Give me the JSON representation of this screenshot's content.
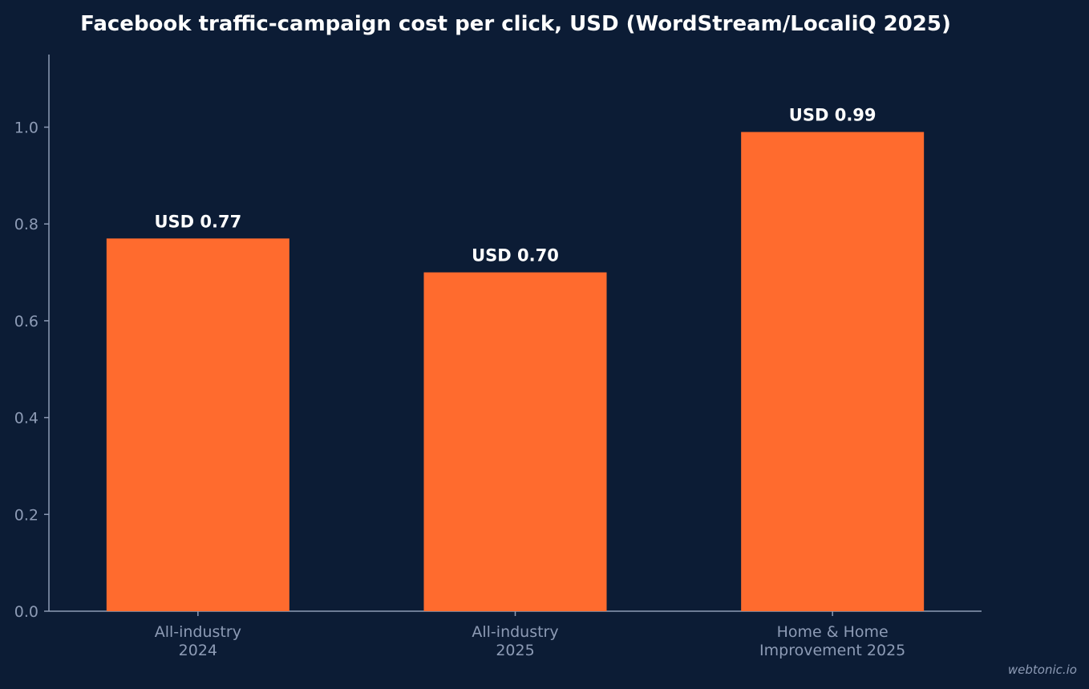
{
  "chart_data": {
    "type": "bar",
    "title": "Facebook traffic-campaign cost per click, USD (WordStream/LocaliQ 2025)",
    "categories": [
      [
        "All-industry",
        "2024"
      ],
      [
        "All-industry",
        "2025"
      ],
      [
        "Home & Home",
        "Improvement 2025"
      ]
    ],
    "values": [
      0.77,
      0.7,
      0.99
    ],
    "data_labels": [
      "USD 0.77",
      "USD 0.70",
      "USD 0.99"
    ],
    "yticks": [
      "0.0",
      "0.2",
      "0.4",
      "0.6",
      "0.8",
      "1.0"
    ],
    "ylim": [
      0,
      1.15
    ],
    "xlabel": "",
    "ylabel": "",
    "grid": false,
    "colors": {
      "bar": "#ff6b2e",
      "axis": "#8d9bb5",
      "background": "#0c1c35",
      "title": "#ffffff"
    }
  },
  "watermark": "webtonic.io"
}
